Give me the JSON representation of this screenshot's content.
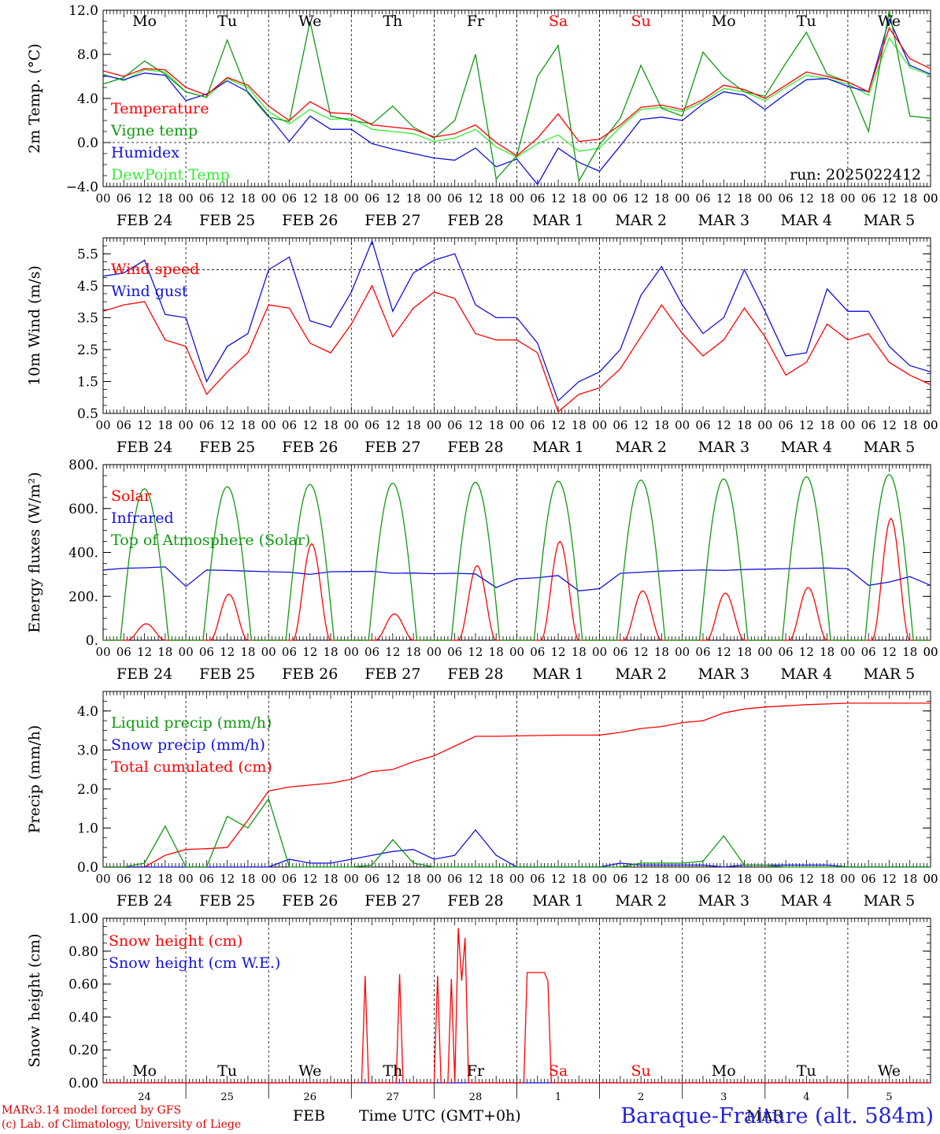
{
  "footer": {
    "model": "MARv3.14 model forced by GFS",
    "credit": "(c) Lab. of Climatology, University of Liege",
    "month": "FEB",
    "month2": "MAR",
    "time_axis": "Time UTC (GMT+0h)",
    "station": "Baraque-Fraiture (alt. 584m)"
  },
  "colors": {
    "red": "#ff0000",
    "green": "#119911",
    "blue": "#1111dd",
    "lightgreen": "#33ee33",
    "weekend": "#ff0000"
  },
  "chart_data": [
    {
      "type": "line",
      "id": "temp",
      "ylabel": "2m Temp. (°C)",
      "ylim": [
        -4,
        12
      ],
      "yticks": [
        -4,
        0,
        4,
        8,
        12
      ],
      "ytick_labels": [
        "−4.0",
        "0.0",
        "4.0",
        "8.0",
        "12.0"
      ],
      "ref_line": 0,
      "run_label": "run: 2025022412",
      "day_names": [
        "Mo",
        "Tu",
        "We",
        "Th",
        "Fr",
        "Sa",
        "Su",
        "Mo",
        "Tu",
        "We"
      ],
      "weekend_days": [
        5,
        6
      ],
      "x_hours": [
        0,
        6,
        12,
        18,
        24,
        30,
        36,
        42,
        48,
        54,
        60,
        66,
        72,
        78,
        84,
        90,
        96,
        102,
        108,
        114,
        120,
        126,
        132,
        138,
        144,
        150,
        156,
        162,
        168,
        174,
        180,
        186,
        192,
        198,
        204,
        210,
        216,
        222,
        228,
        234,
        240
      ],
      "series": [
        {
          "name": "Temperature",
          "color": "red",
          "values": [
            6.5,
            6.0,
            6.7,
            6.6,
            5.0,
            4.3,
            5.9,
            5.2,
            3.3,
            2.0,
            3.7,
            2.7,
            2.6,
            1.6,
            1.4,
            1.2,
            0.5,
            0.8,
            1.6,
            0.0,
            -1.2,
            0.4,
            2.6,
            0.1,
            0.3,
            1.6,
            3.2,
            3.4,
            3.0,
            3.9,
            5.2,
            4.8,
            4.0,
            5.2,
            6.4,
            6.0,
            5.5,
            4.6,
            10.4,
            7.6,
            6.7
          ]
        },
        {
          "name": "Vigne temp",
          "color": "green",
          "values": [
            5.3,
            5.9,
            7.4,
            6.2,
            4.6,
            4.1,
            9.3,
            4.5,
            2.3,
            1.9,
            11.0,
            2.4,
            2.0,
            1.7,
            3.3,
            1.4,
            0.4,
            2.0,
            8.0,
            -3.3,
            -1.2,
            6.0,
            8.8,
            -3.5,
            -0.2,
            2.2,
            7.0,
            3.1,
            2.4,
            8.2,
            6.0,
            4.6,
            4.2,
            7.2,
            10.0,
            6.2,
            5.5,
            1.0,
            12.0,
            2.4,
            2.2
          ]
        },
        {
          "name": "Humidex",
          "color": "blue",
          "values": [
            6.1,
            5.7,
            6.3,
            6.1,
            3.8,
            4.4,
            5.6,
            4.6,
            2.4,
            0.1,
            2.4,
            1.2,
            1.2,
            -0.1,
            -0.6,
            -1.0,
            -1.4,
            -1.6,
            -0.5,
            -2.2,
            -1.5,
            -3.8,
            -0.5,
            -1.8,
            -2.6,
            -0.3,
            2.1,
            2.3,
            2.0,
            3.5,
            4.6,
            4.3,
            3.0,
            4.4,
            5.7,
            5.8,
            5.1,
            4.6,
            11.2,
            7.0,
            6.2
          ]
        },
        {
          "name": "DewPoint Temp",
          "color": "lightgreen",
          "values": [
            6.2,
            5.6,
            6.6,
            6.4,
            4.6,
            4.1,
            5.8,
            5.0,
            2.8,
            1.7,
            3.0,
            2.1,
            2.2,
            1.2,
            1.0,
            0.8,
            0.1,
            0.4,
            1.2,
            -0.4,
            -1.3,
            -0.1,
            0.7,
            -0.8,
            -0.5,
            1.4,
            3.0,
            3.2,
            2.8,
            3.7,
            4.9,
            4.6,
            3.8,
            5.0,
            6.1,
            5.8,
            5.3,
            4.3,
            9.5,
            6.8,
            6.1
          ]
        }
      ]
    },
    {
      "type": "line",
      "id": "wind",
      "ylabel": "10m Wind (m/s)",
      "ylim": [
        0.5,
        6.0
      ],
      "yticks": [
        0.5,
        1.5,
        2.5,
        3.5,
        4.5,
        5.5
      ],
      "ytick_labels": [
        "0.5",
        "1.5",
        "2.5",
        "3.5",
        "4.5",
        "5.5"
      ],
      "ref_line": 5,
      "x_hours": [
        0,
        6,
        12,
        18,
        24,
        30,
        36,
        42,
        48,
        54,
        60,
        66,
        72,
        78,
        84,
        90,
        96,
        102,
        108,
        114,
        120,
        126,
        132,
        138,
        144,
        150,
        156,
        162,
        168,
        174,
        180,
        186,
        192,
        198,
        204,
        210,
        216,
        222,
        228,
        234,
        240
      ],
      "series": [
        {
          "name": "Wind speed",
          "color": "red",
          "values": [
            3.7,
            3.9,
            4.0,
            2.8,
            2.6,
            1.1,
            1.8,
            2.4,
            3.9,
            3.8,
            2.7,
            2.4,
            3.3,
            4.5,
            2.9,
            3.8,
            4.3,
            4.1,
            3.0,
            2.8,
            2.8,
            2.4,
            0.55,
            1.1,
            1.3,
            1.9,
            2.9,
            3.9,
            3.0,
            2.3,
            2.8,
            3.8,
            2.9,
            1.7,
            2.1,
            3.3,
            2.8,
            3.0,
            2.1,
            1.7,
            1.4
          ]
        },
        {
          "name": "Wind gust",
          "color": "blue",
          "values": [
            4.8,
            4.9,
            5.3,
            3.6,
            3.5,
            1.5,
            2.6,
            3.0,
            5.0,
            5.4,
            3.4,
            3.2,
            4.3,
            5.9,
            3.7,
            4.9,
            5.3,
            5.5,
            3.9,
            3.5,
            3.5,
            2.7,
            0.9,
            1.5,
            1.8,
            2.5,
            4.2,
            5.1,
            3.9,
            3.0,
            3.5,
            5.0,
            3.7,
            2.3,
            2.4,
            4.4,
            3.7,
            3.7,
            2.6,
            2.0,
            1.8
          ]
        }
      ]
    },
    {
      "type": "line",
      "id": "energy",
      "ylabel": "Energy fluxes (W/m²)",
      "ylim": [
        0,
        800
      ],
      "yticks": [
        0,
        200,
        400,
        600,
        800
      ],
      "ytick_labels": [
        "0.",
        "200.",
        "400.",
        "600.",
        "800."
      ],
      "x_hours": [
        0,
        6,
        12,
        18,
        24,
        30,
        36,
        42,
        48,
        54,
        60,
        66,
        72,
        78,
        84,
        90,
        96,
        102,
        108,
        114,
        120,
        126,
        132,
        138,
        144,
        150,
        156,
        162,
        168,
        174,
        180,
        186,
        192,
        198,
        204,
        210,
        216,
        222,
        228,
        234,
        240
      ],
      "series": [
        {
          "name": "Solar",
          "color": "red",
          "daily_peak_hour": 12,
          "daily_peaks": [
            75,
            210,
            440,
            120,
            340,
            450,
            225,
            215,
            240,
            555
          ],
          "values": [
            0,
            0,
            75,
            0,
            0,
            0,
            210,
            0,
            0,
            0,
            440,
            0,
            0,
            0,
            120,
            0,
            0,
            0,
            340,
            0,
            0,
            0,
            450,
            0,
            0,
            0,
            225,
            0,
            0,
            0,
            215,
            0,
            0,
            0,
            240,
            0,
            0,
            0,
            555,
            0,
            0
          ]
        },
        {
          "name": "Infrared",
          "color": "blue",
          "values": [
            320,
            328,
            330,
            334,
            245,
            320,
            318,
            315,
            312,
            310,
            300,
            312,
            313,
            314,
            305,
            306,
            303,
            305,
            302,
            240,
            280,
            285,
            295,
            225,
            235,
            305,
            310,
            315,
            318,
            320,
            318,
            322,
            324,
            326,
            328,
            329,
            326,
            250,
            265,
            290,
            250
          ]
        },
        {
          "name": "Top of Atmosphere (Solar)",
          "color": "green",
          "daily_peaks": [
            690,
            700,
            710,
            715,
            720,
            725,
            730,
            735,
            745,
            755
          ],
          "values": [
            0,
            0,
            690,
            0,
            0,
            0,
            700,
            0,
            0,
            0,
            710,
            0,
            0,
            0,
            715,
            0,
            0,
            0,
            720,
            0,
            0,
            0,
            725,
            0,
            0,
            0,
            730,
            0,
            0,
            0,
            735,
            0,
            0,
            0,
            745,
            0,
            0,
            0,
            755,
            0,
            0
          ]
        }
      ]
    },
    {
      "type": "line",
      "id": "precip",
      "ylabel": "Precip (mm/h)",
      "ylim": [
        0,
        4.5
      ],
      "yticks": [
        0,
        1,
        2,
        3,
        4
      ],
      "ytick_labels": [
        "0.0",
        "1.0",
        "2.0",
        "3.0",
        "4.0"
      ],
      "x_hours": [
        0,
        6,
        12,
        18,
        24,
        30,
        36,
        42,
        48,
        54,
        60,
        66,
        72,
        78,
        84,
        90,
        96,
        102,
        108,
        114,
        120,
        126,
        132,
        138,
        144,
        150,
        156,
        162,
        168,
        174,
        180,
        186,
        192,
        198,
        204,
        210,
        216,
        222,
        228,
        234,
        240
      ],
      "series": [
        {
          "name": "Liquid precip (mm/h)",
          "color": "green",
          "values": [
            0,
            0,
            0.1,
            1.05,
            0,
            0,
            1.3,
            1.0,
            1.75,
            0,
            0,
            0,
            0,
            0.05,
            0.7,
            0.1,
            0,
            0,
            0,
            0,
            0,
            0,
            0,
            0,
            0,
            0,
            0.1,
            0.1,
            0.1,
            0.15,
            0.8,
            0.05,
            0.05,
            0,
            0,
            0,
            0,
            0,
            0,
            0,
            0
          ]
        },
        {
          "name": "Snow precip (mm/h)",
          "color": "blue",
          "values": [
            0,
            0,
            0,
            0,
            0,
            0,
            0,
            0,
            0,
            0.2,
            0.1,
            0.1,
            0.2,
            0.3,
            0.4,
            0.45,
            0.2,
            0.3,
            0.95,
            0.3,
            0,
            0,
            0,
            0,
            0,
            0.1,
            0.05,
            0.05,
            0.05,
            0.05,
            0,
            0.05,
            0.05,
            0.05,
            0.05,
            0.05,
            0,
            0,
            0,
            0,
            0
          ]
        },
        {
          "name": "Total cumulated (cm)",
          "color": "red",
          "values": [
            0,
            0,
            0,
            0.3,
            0.45,
            0.47,
            0.5,
            1.2,
            1.95,
            2.05,
            2.1,
            2.15,
            2.25,
            2.45,
            2.5,
            2.7,
            2.85,
            3.1,
            3.35,
            3.35,
            3.36,
            3.37,
            3.38,
            3.38,
            3.38,
            3.45,
            3.55,
            3.6,
            3.7,
            3.75,
            3.95,
            4.05,
            4.1,
            4.13,
            4.16,
            4.18,
            4.2,
            4.2,
            4.2,
            4.2,
            4.2
          ]
        }
      ]
    },
    {
      "type": "line",
      "id": "snow",
      "ylabel": "Snow height (cm)",
      "ylim": [
        0,
        1.0
      ],
      "yticks": [
        0,
        0.2,
        0.4,
        0.6,
        0.8,
        1.0
      ],
      "ytick_labels": [
        "0.00",
        "0.20",
        "0.40",
        "0.60",
        "0.80",
        "1.00"
      ],
      "day_names": [
        "Mo",
        "Tu",
        "We",
        "Th",
        "Fr",
        "Sa",
        "Su",
        "Mo",
        "Tu",
        "We"
      ],
      "weekend_days": [
        5,
        6
      ],
      "date_labels": [
        "24",
        "25",
        "26",
        "27",
        "28",
        "1",
        "2",
        "3",
        "4",
        "5"
      ],
      "series": [
        {
          "name": "Snow height (cm)",
          "color": "red",
          "points": [
            [
              0,
              0
            ],
            [
              75,
              0
            ],
            [
              76,
              0.65
            ],
            [
              77,
              0
            ],
            [
              84,
              0
            ],
            [
              85,
              0
            ],
            [
              86,
              0.66
            ],
            [
              87,
              0
            ],
            [
              96,
              0
            ],
            [
              97,
              0.65
            ],
            [
              98,
              0
            ],
            [
              100,
              0
            ],
            [
              101,
              0.63
            ],
            [
              102,
              0
            ],
            [
              103,
              0.94
            ],
            [
              104,
              0.62
            ],
            [
              105,
              0.88
            ],
            [
              106,
              0
            ],
            [
              120,
              0
            ],
            [
              122,
              0
            ],
            [
              123,
              0.67
            ],
            [
              128,
              0.67
            ],
            [
              129,
              0.62
            ],
            [
              130,
              0
            ],
            [
              240,
              0
            ]
          ]
        },
        {
          "name": "Snow height (cm W.E.)",
          "color": "blue",
          "points": [
            [
              0,
              0
            ],
            [
              240,
              0
            ]
          ]
        }
      ]
    }
  ],
  "date_axis": {
    "hour_labels": [
      "00",
      "06",
      "12",
      "18"
    ],
    "dates": [
      "FEB 24",
      "FEB 25",
      "FEB 26",
      "FEB 27",
      "FEB 28",
      "MAR  1",
      "MAR  2",
      "MAR  3",
      "MAR  4",
      "MAR  5"
    ]
  }
}
